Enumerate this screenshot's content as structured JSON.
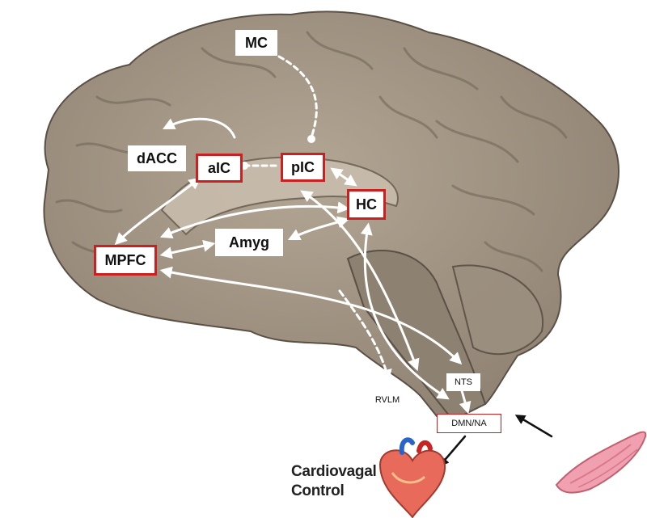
{
  "labels": {
    "mc": "MC",
    "dacc": "dACC",
    "aic": "aIC",
    "pic": "pIC",
    "hc": "HC",
    "amyg": "Amyg",
    "mpfc": "MPFC",
    "nts": "NTS",
    "rvlm": "RVLM",
    "dmn_na": "DMN/NA"
  },
  "caption": {
    "line1": "Cardiovagal",
    "line2": "Control"
  },
  "colors": {
    "box_border": "#cc1f1f",
    "arrow": "#ffffff",
    "brain": "#a89a8a",
    "heart": "#e86a5a",
    "muscle": "#f0a0b0"
  },
  "icons": [
    "brain-image",
    "heart-icon",
    "muscle-icon"
  ]
}
